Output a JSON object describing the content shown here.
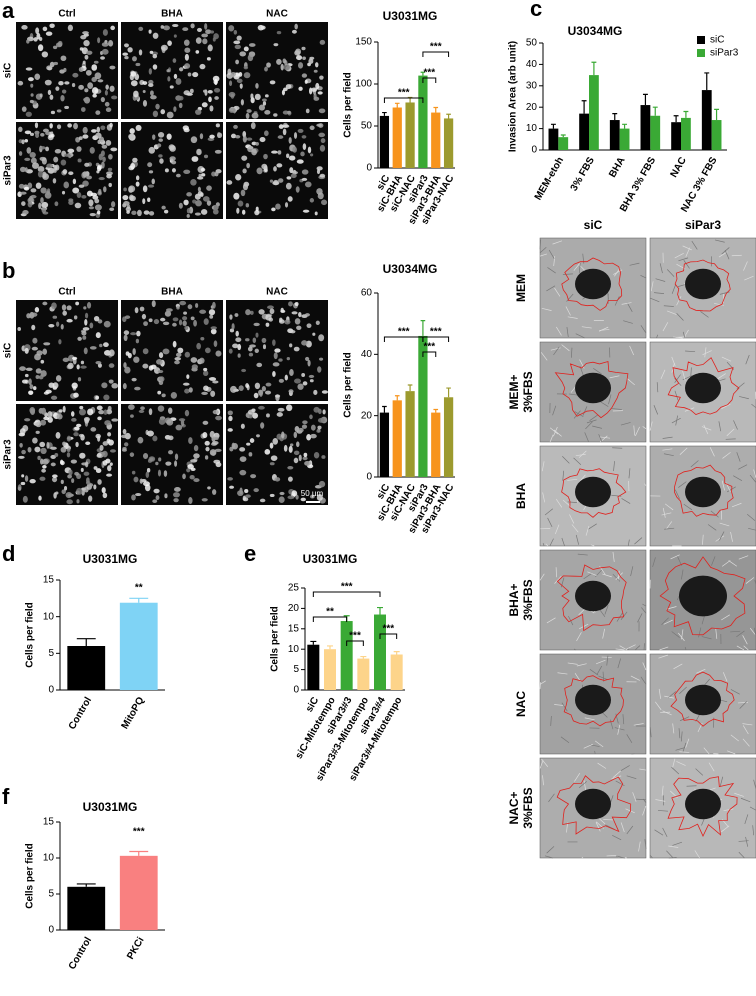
{
  "panel_labels": [
    "a",
    "b",
    "c",
    "d",
    "e",
    "f"
  ],
  "micrographs": {
    "a": {
      "columns": [
        "Ctrl",
        "BHA",
        "NAC"
      ],
      "rows": [
        "siC",
        "siPar3"
      ]
    },
    "b": {
      "columns": [
        "Ctrl",
        "BHA",
        "NAC"
      ],
      "rows": [
        "siC",
        "siPar3"
      ],
      "scale_bar": "50 µm"
    },
    "c": {
      "columns": [
        "siC",
        "siPar3"
      ],
      "rows": [
        [
          "MEM"
        ],
        [
          "MEM+",
          "3%FBS"
        ],
        [
          "BHA"
        ],
        [
          "BHA+",
          "3%FBS"
        ],
        [
          "NAC"
        ],
        [
          "NAC+",
          "3%FBS"
        ]
      ]
    }
  },
  "chart_data": [
    {
      "type": "bar",
      "title": "U3031MG",
      "ylabel": "Cells per field",
      "categories": [
        "siC",
        "siC-BHA",
        "siC-NAC",
        "siPar3",
        "siPar3-BHA",
        "siPar3-NAC"
      ],
      "values": [
        62,
        72,
        78,
        110,
        66,
        59
      ],
      "errors": [
        4,
        5,
        6,
        4,
        6,
        5
      ],
      "colors": [
        "#000000",
        "#f7941d",
        "#9c9a2e",
        "#3aa935",
        "#f7941d",
        "#9c9a2e"
      ],
      "ylim": [
        0,
        150
      ],
      "yticks": [
        0,
        50,
        100,
        150
      ],
      "annotations": [
        "***",
        "***",
        "***"
      ]
    },
    {
      "type": "bar",
      "title": "U3034MG",
      "ylabel": "Cells per field",
      "categories": [
        "siC",
        "siC-BHA",
        "siC-NAC",
        "siPar3",
        "siPar3-BHA",
        "siPar3-NAC"
      ],
      "values": [
        21,
        25,
        28,
        46,
        21,
        26
      ],
      "errors": [
        2,
        1.5,
        2,
        5,
        1,
        3
      ],
      "colors": [
        "#000000",
        "#f7941d",
        "#9c9a2e",
        "#3aa935",
        "#f7941d",
        "#9c9a2e"
      ],
      "ylim": [
        0,
        60
      ],
      "yticks": [
        0,
        20,
        40,
        60
      ],
      "annotations": [
        "***",
        "***",
        "***"
      ]
    },
    {
      "type": "grouped-bar",
      "title": "U3034MG",
      "ylabel": "Invasion Area (arb unit)",
      "categories": [
        "MEM-etoh",
        "3% FBS",
        "BHA",
        "BHA 3% FBS",
        "NAC",
        "NAC 3% FBS"
      ],
      "series": [
        {
          "name": "siC",
          "color": "#000000",
          "values": [
            10,
            17,
            14,
            21,
            13,
            28
          ],
          "errors": [
            2,
            6,
            3,
            5,
            3,
            8
          ]
        },
        {
          "name": "siPar3",
          "color": "#3aa935",
          "values": [
            6,
            35,
            10,
            16,
            15,
            14
          ],
          "errors": [
            1,
            6,
            2,
            4,
            3,
            5
          ]
        }
      ],
      "ylim": [
        0,
        50
      ],
      "yticks": [
        0,
        10,
        20,
        30,
        40,
        50
      ],
      "legend": "top-right"
    },
    {
      "type": "bar",
      "title": "U3031MG",
      "ylabel": "Cells per field",
      "categories": [
        "Control",
        "MitoPQ"
      ],
      "values": [
        6,
        11.9
      ],
      "errors": [
        1,
        0.6
      ],
      "colors": [
        "#000000",
        "#7fd3f5"
      ],
      "ylim": [
        0,
        15
      ],
      "yticks": [
        0,
        5,
        10,
        15
      ],
      "annotations": [
        "**"
      ]
    },
    {
      "type": "bar",
      "title": "U3031MG",
      "ylabel": "Cells per field",
      "categories": [
        "siC",
        "siC-Mitotempo",
        "siPar3#3",
        "siPar3#3-Mitotempo",
        "siPar3#4",
        "siPar3#4-Mitotempo"
      ],
      "values": [
        11.1,
        10,
        16.9,
        7.7,
        18.5,
        8.7
      ],
      "errors": [
        0.8,
        0.8,
        1.3,
        0.5,
        1.7,
        0.7
      ],
      "colors": [
        "#000000",
        "#fdd48a",
        "#3aa935",
        "#fdd48a",
        "#3aa935",
        "#fdd48a"
      ],
      "ylim": [
        0,
        25
      ],
      "yticks": [
        0,
        5,
        10,
        15,
        20,
        25
      ],
      "annotations": [
        "***",
        "**",
        "***",
        "***"
      ]
    },
    {
      "type": "bar",
      "title": "U3031MG",
      "ylabel": "Cells per field",
      "categories": [
        "Control",
        "PKCi"
      ],
      "values": [
        6,
        10.3
      ],
      "errors": [
        0.4,
        0.6
      ],
      "colors": [
        "#000000",
        "#f98080"
      ],
      "ylim": [
        0,
        15
      ],
      "yticks": [
        0,
        5,
        10,
        15
      ],
      "annotations": [
        "***"
      ]
    }
  ]
}
